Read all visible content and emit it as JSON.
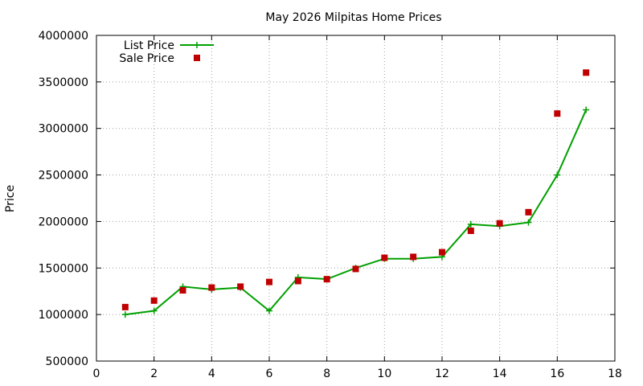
{
  "chart_data": {
    "type": "line",
    "title": "May 2026 Milpitas Home Prices",
    "xlabel": "",
    "ylabel": "Price",
    "xlim": [
      0,
      18
    ],
    "ylim": [
      500000,
      4000000
    ],
    "x_ticks": [
      0,
      2,
      4,
      6,
      8,
      10,
      12,
      14,
      16,
      18
    ],
    "y_ticks": [
      500000,
      1000000,
      1500000,
      2000000,
      2500000,
      3000000,
      3500000,
      4000000
    ],
    "grid": true,
    "legend_position": "top-left",
    "x": [
      1,
      2,
      3,
      4,
      5,
      6,
      7,
      8,
      9,
      10,
      11,
      12,
      13,
      14,
      15,
      16,
      17
    ],
    "series": [
      {
        "name": "List Price",
        "style": "line-with-plus-markers",
        "color": "#00a000",
        "values": [
          1000000,
          1040000,
          1300000,
          1270000,
          1290000,
          1040000,
          1400000,
          1380000,
          1500000,
          1600000,
          1600000,
          1620000,
          1970000,
          1950000,
          1990000,
          2500000,
          3200000
        ]
      },
      {
        "name": "Sale Price",
        "style": "square-points",
        "color": "#c00000",
        "values": [
          1080000,
          1150000,
          1260000,
          1290000,
          1300000,
          1350000,
          1360000,
          1380000,
          1490000,
          1610000,
          1620000,
          1670000,
          1900000,
          1980000,
          2100000,
          3160000,
          3600000
        ]
      }
    ]
  }
}
